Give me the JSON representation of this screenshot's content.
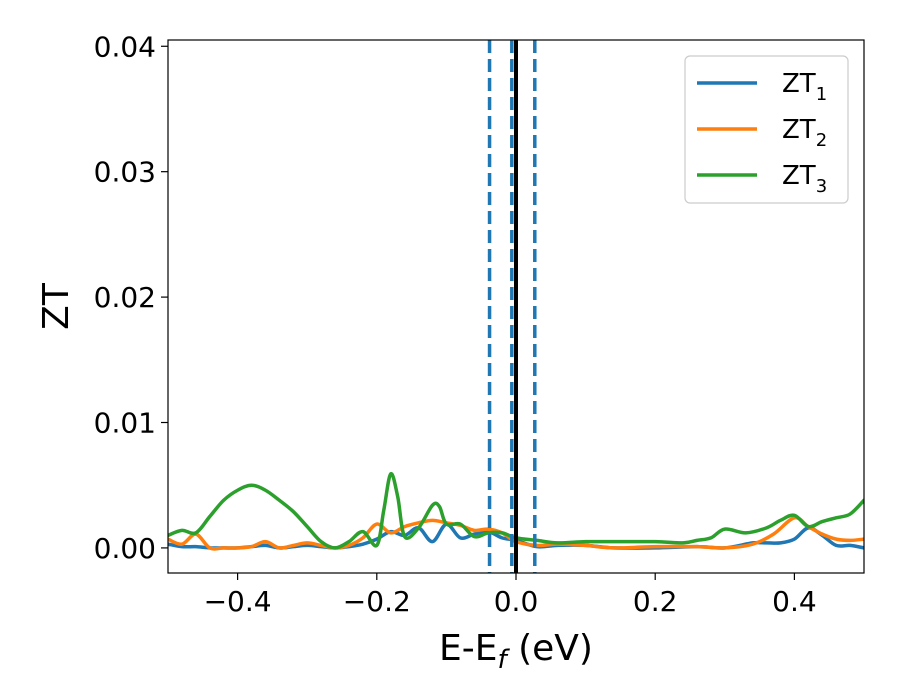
{
  "chart_data": {
    "type": "line",
    "title": "",
    "xlabel": "E-E",
    "xlabel_sub": "f",
    "xlabel_unit": " (eV)",
    "ylabel": "ZT",
    "xlim": [
      -0.5,
      0.5
    ],
    "ylim": [
      -0.002,
      0.0405
    ],
    "xticks": [
      -0.4,
      -0.2,
      0.0,
      0.2,
      0.4
    ],
    "xtick_labels": [
      "−0.4",
      "−0.2",
      "0.0",
      "0.2",
      "0.4"
    ],
    "yticks": [
      0.0,
      0.01,
      0.02,
      0.03,
      0.04
    ],
    "ytick_labels": [
      "0.00",
      "0.01",
      "0.02",
      "0.03",
      "0.04"
    ],
    "grid": false,
    "legend_position": "top-right",
    "vertical_lines": [
      {
        "x": 0.0,
        "style": "solid",
        "color": "#000000"
      },
      {
        "x": -0.038,
        "style": "dashed",
        "color": "#1f77b4"
      },
      {
        "x": -0.006,
        "style": "dashed",
        "color": "#1f77b4"
      },
      {
        "x": 0.027,
        "style": "dashed",
        "color": "#1f77b4"
      }
    ],
    "series": [
      {
        "name": "ZT",
        "name_sub": "1",
        "color": "#1f77b4",
        "x": [
          -0.5,
          -0.48,
          -0.46,
          -0.44,
          -0.42,
          -0.4,
          -0.38,
          -0.36,
          -0.34,
          -0.32,
          -0.3,
          -0.28,
          -0.26,
          -0.24,
          -0.22,
          -0.2,
          -0.18,
          -0.16,
          -0.14,
          -0.12,
          -0.1,
          -0.08,
          -0.06,
          -0.04,
          -0.02,
          0.0,
          0.03,
          0.06,
          0.1,
          0.14,
          0.2,
          0.26,
          0.3,
          0.34,
          0.36,
          0.38,
          0.4,
          0.42,
          0.44,
          0.46,
          0.48,
          0.5
        ],
        "y": [
          0.0003,
          0.0001,
          0.0001,
          0.0,
          0.0,
          0.0,
          0.0001,
          0.0002,
          0.0,
          0.0001,
          0.0002,
          0.0001,
          0.0,
          0.0001,
          0.0003,
          0.0007,
          0.0013,
          0.001,
          0.0016,
          0.0005,
          0.0019,
          0.0008,
          0.0011,
          0.0013,
          0.0008,
          0.0006,
          0.0001,
          0.0002,
          0.0002,
          0.0,
          0.0,
          0.0001,
          0.0,
          0.0004,
          0.0004,
          0.0004,
          0.0007,
          0.0016,
          0.001,
          0.0002,
          0.0002,
          0.0
        ]
      },
      {
        "name": "ZT",
        "name_sub": "2",
        "color": "#ff7f0e",
        "x": [
          -0.5,
          -0.48,
          -0.46,
          -0.44,
          -0.42,
          -0.4,
          -0.38,
          -0.36,
          -0.34,
          -0.32,
          -0.3,
          -0.28,
          -0.26,
          -0.24,
          -0.22,
          -0.2,
          -0.18,
          -0.16,
          -0.14,
          -0.12,
          -0.1,
          -0.08,
          -0.06,
          -0.04,
          -0.02,
          0.0,
          0.03,
          0.06,
          0.1,
          0.14,
          0.2,
          0.26,
          0.3,
          0.34,
          0.37,
          0.4,
          0.42,
          0.44,
          0.46,
          0.48,
          0.5
        ],
        "y": [
          0.0007,
          0.0003,
          0.0011,
          0.0,
          0.0,
          0.0,
          0.0001,
          0.0005,
          0.0,
          0.0002,
          0.0004,
          0.0002,
          0.0,
          0.0002,
          0.0008,
          0.0019,
          0.0012,
          0.0017,
          0.002,
          0.0022,
          0.002,
          0.0018,
          0.0014,
          0.0015,
          0.0012,
          0.0005,
          0.0002,
          0.0003,
          0.0002,
          0.0,
          0.0001,
          0.0001,
          0.0,
          0.0003,
          0.0011,
          0.0024,
          0.0017,
          0.0011,
          0.0007,
          0.0006,
          0.0007
        ]
      },
      {
        "name": "ZT",
        "name_sub": "3",
        "color": "#2ca02c",
        "x": [
          -0.5,
          -0.48,
          -0.46,
          -0.44,
          -0.42,
          -0.4,
          -0.38,
          -0.36,
          -0.34,
          -0.32,
          -0.3,
          -0.28,
          -0.26,
          -0.24,
          -0.22,
          -0.2,
          -0.19,
          -0.18,
          -0.17,
          -0.16,
          -0.14,
          -0.12,
          -0.11,
          -0.1,
          -0.08,
          -0.06,
          -0.04,
          -0.02,
          0.0,
          0.03,
          0.06,
          0.1,
          0.14,
          0.2,
          0.24,
          0.26,
          0.28,
          0.3,
          0.33,
          0.36,
          0.38,
          0.4,
          0.42,
          0.44,
          0.46,
          0.48,
          0.5
        ],
        "y": [
          0.001,
          0.0014,
          0.0012,
          0.0025,
          0.0038,
          0.0046,
          0.005,
          0.0046,
          0.0038,
          0.0029,
          0.0017,
          0.0005,
          0.0,
          0.0005,
          0.0013,
          0.0002,
          0.003,
          0.0059,
          0.0041,
          0.0009,
          0.0016,
          0.0034,
          0.0033,
          0.0019,
          0.0019,
          0.0009,
          0.0012,
          0.0012,
          0.0008,
          0.0006,
          0.0004,
          0.0005,
          0.0005,
          0.0005,
          0.0004,
          0.0006,
          0.0008,
          0.0015,
          0.0012,
          0.0016,
          0.0022,
          0.0026,
          0.0017,
          0.0021,
          0.0024,
          0.0027,
          0.0038
        ]
      }
    ]
  }
}
